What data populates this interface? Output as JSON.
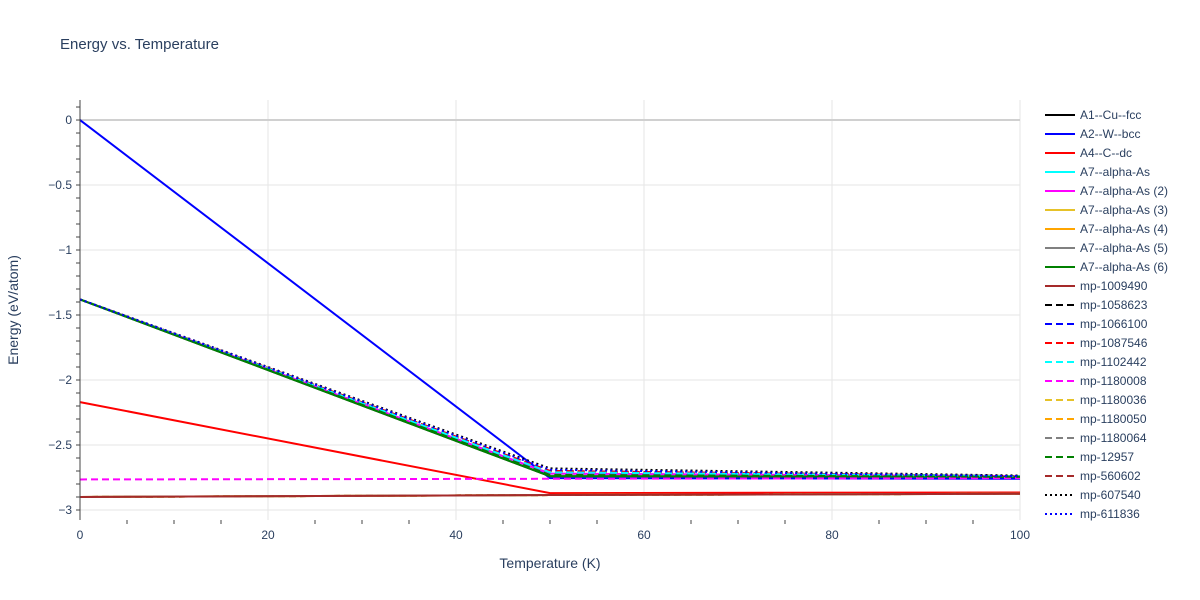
{
  "chart_data": {
    "type": "line",
    "title": "Energy vs. Temperature",
    "xlabel": "Temperature (K)",
    "ylabel": "Energy (eV/atom)",
    "xlim": [
      0,
      100
    ],
    "ylim": [
      -3.077,
      0.154
    ],
    "xticks": [
      0,
      20,
      40,
      60,
      80,
      100
    ],
    "yticks": [
      0,
      -0.5,
      -1,
      -1.5,
      -2,
      -2.5,
      -3
    ],
    "ytick_labels": [
      "0",
      "−0.5",
      "−1",
      "−1.5",
      "−2",
      "−2.5",
      "−3"
    ],
    "grid": true,
    "legend": "right",
    "series": [
      {
        "name": "A1--Cu--fcc",
        "color": "#000000",
        "dash": "solid",
        "x": [
          0,
          50,
          100
        ],
        "y": [
          -1.38,
          -2.74,
          -2.745
        ]
      },
      {
        "name": "A2--W--bcc",
        "color": "#0000ff",
        "dash": "solid",
        "x": [
          0,
          50,
          100
        ],
        "y": [
          0,
          -2.755,
          -2.76
        ]
      },
      {
        "name": "A4--C--dc",
        "color": "#ff0000",
        "dash": "solid",
        "x": [
          0,
          50,
          100
        ],
        "y": [
          -2.17,
          -2.87,
          -2.865
        ]
      },
      {
        "name": "A7--alpha-As",
        "color": "#00ffff",
        "dash": "solid",
        "x": [
          0,
          50,
          100
        ],
        "y": [
          -1.38,
          -2.72,
          -2.74
        ]
      },
      {
        "name": "A7--alpha-As (2)",
        "color": "#ff00ff",
        "dash": "solid",
        "x": [
          0,
          50,
          100
        ],
        "y": [
          -1.38,
          -2.72,
          -2.74
        ]
      },
      {
        "name": "A7--alpha-As (3)",
        "color": "#e6c229",
        "dash": "solid",
        "x": [
          0,
          50,
          100
        ],
        "y": [
          -2.9,
          -2.885,
          -2.875
        ]
      },
      {
        "name": "A7--alpha-As (4)",
        "color": "#ffa500",
        "dash": "solid",
        "x": [
          0,
          50,
          100
        ],
        "y": [
          -2.9,
          -2.885,
          -2.875
        ]
      },
      {
        "name": "A7--alpha-As (5)",
        "color": "#808080",
        "dash": "solid",
        "x": [
          0,
          50,
          100
        ],
        "y": [
          -2.9,
          -2.885,
          -2.875
        ]
      },
      {
        "name": "A7--alpha-As (6)",
        "color": "#008000",
        "dash": "solid",
        "x": [
          0,
          50,
          100
        ],
        "y": [
          -1.38,
          -2.74,
          -2.745
        ]
      },
      {
        "name": "mp-1009490",
        "color": "#a52a2a",
        "dash": "solid",
        "x": [
          0,
          50,
          100
        ],
        "y": [
          -2.9,
          -2.885,
          -2.875
        ]
      },
      {
        "name": "mp-1058623",
        "color": "#000000",
        "dash": "dash",
        "x": [
          0,
          50,
          100
        ],
        "y": [
          -1.38,
          -2.7,
          -2.74
        ]
      },
      {
        "name": "mp-1066100",
        "color": "#0000ff",
        "dash": "dash",
        "x": [
          0,
          50,
          100
        ],
        "y": [
          -1.38,
          -2.71,
          -2.74
        ]
      },
      {
        "name": "mp-1087546",
        "color": "#ff0000",
        "dash": "dash",
        "x": [
          0,
          50,
          100
        ],
        "y": [
          -1.38,
          -2.7,
          -2.74
        ]
      },
      {
        "name": "mp-1102442",
        "color": "#00ffff",
        "dash": "dash",
        "x": [
          0,
          50,
          100
        ],
        "y": [
          -1.38,
          -2.71,
          -2.74
        ]
      },
      {
        "name": "mp-1180008",
        "color": "#ff00ff",
        "dash": "dash",
        "x": [
          0,
          50,
          100
        ],
        "y": [
          -2.765,
          -2.76,
          -2.755
        ]
      },
      {
        "name": "mp-1180036",
        "color": "#e6c229",
        "dash": "dash",
        "x": [
          0,
          50,
          100
        ],
        "y": [
          -2.9,
          -2.885,
          -2.875
        ]
      },
      {
        "name": "mp-1180050",
        "color": "#ffa500",
        "dash": "dash",
        "x": [
          0,
          50,
          100
        ],
        "y": [
          -2.9,
          -2.885,
          -2.875
        ]
      },
      {
        "name": "mp-1180064",
        "color": "#808080",
        "dash": "dash",
        "x": [
          0,
          50,
          100
        ],
        "y": [
          -2.9,
          -2.885,
          -2.875
        ]
      },
      {
        "name": "mp-12957",
        "color": "#008000",
        "dash": "dash",
        "x": [
          0,
          50,
          100
        ],
        "y": [
          -1.38,
          -2.73,
          -2.745
        ]
      },
      {
        "name": "mp-560602",
        "color": "#a52a2a",
        "dash": "dash",
        "x": [
          0,
          50,
          100
        ],
        "y": [
          -2.9,
          -2.885,
          -2.875
        ]
      },
      {
        "name": "mp-607540",
        "color": "#000000",
        "dash": "dot",
        "x": [
          0,
          50,
          100
        ],
        "y": [
          -1.38,
          -2.68,
          -2.735
        ]
      },
      {
        "name": "mp-611836",
        "color": "#0000ff",
        "dash": "dot",
        "x": [
          0,
          50,
          100
        ],
        "y": [
          -1.38,
          -2.69,
          -2.74
        ]
      }
    ]
  }
}
